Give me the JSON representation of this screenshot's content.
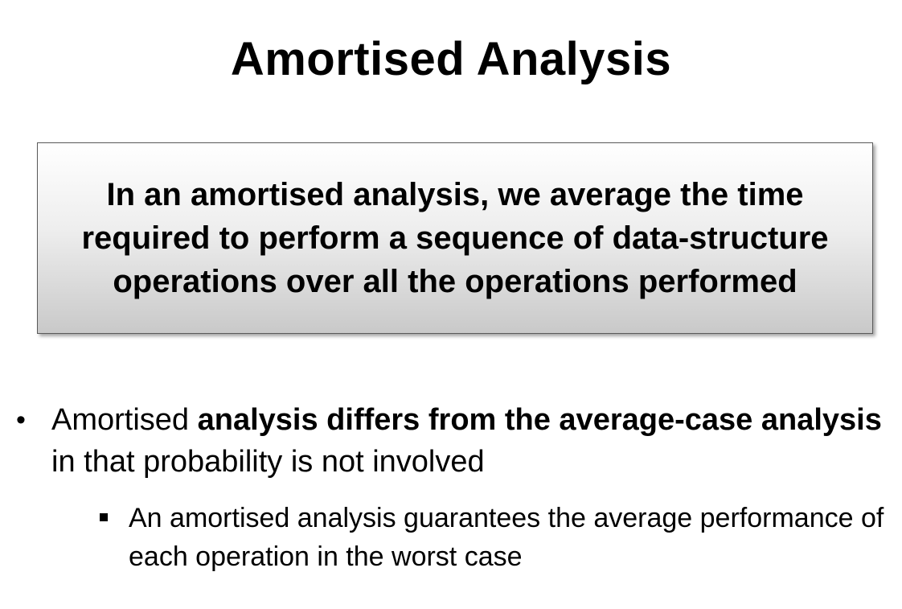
{
  "slide": {
    "title": "Amortised Analysis",
    "definition": "In an amortised analysis, we average the time required to perform a sequence of data-structure operations over all the operations performed",
    "bullets": [
      {
        "parts": [
          {
            "text": "Amortised ",
            "bold": false
          },
          {
            "text": "analysis differs from the average-case analysis",
            "bold": true
          },
          {
            "text": " in that probability is not involved",
            "bold": false
          }
        ],
        "sub_bullets": [
          "An amortised analysis guarantees the average performance of each operation in the worst case"
        ]
      }
    ]
  }
}
